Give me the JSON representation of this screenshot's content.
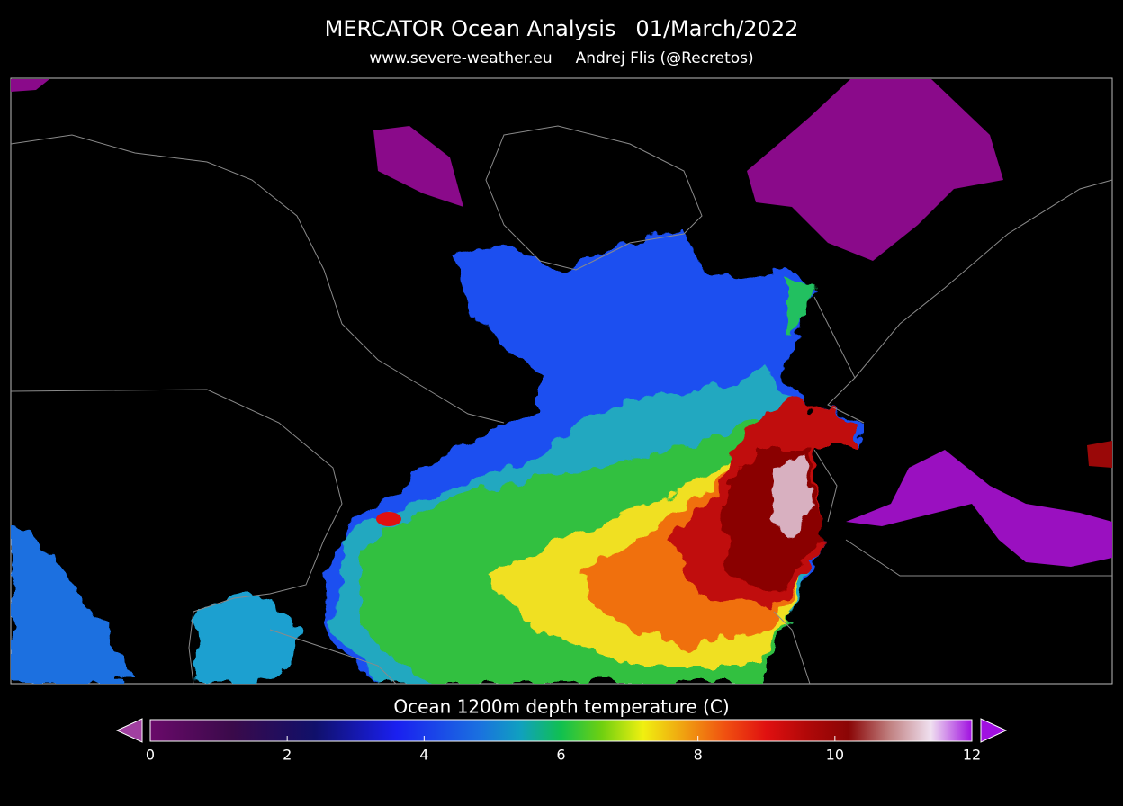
{
  "header": {
    "title": "MERCATOR Ocean Analysis",
    "date": "01/March/2022",
    "website": "www.severe-weather.eu",
    "author": "Andrej Flis (@Recretos)"
  },
  "colorbar": {
    "label": "Ocean 1200m depth temperature (C)",
    "range": [
      0,
      12
    ],
    "ticks": [
      0,
      2,
      4,
      6,
      8,
      10,
      12
    ]
  }
}
